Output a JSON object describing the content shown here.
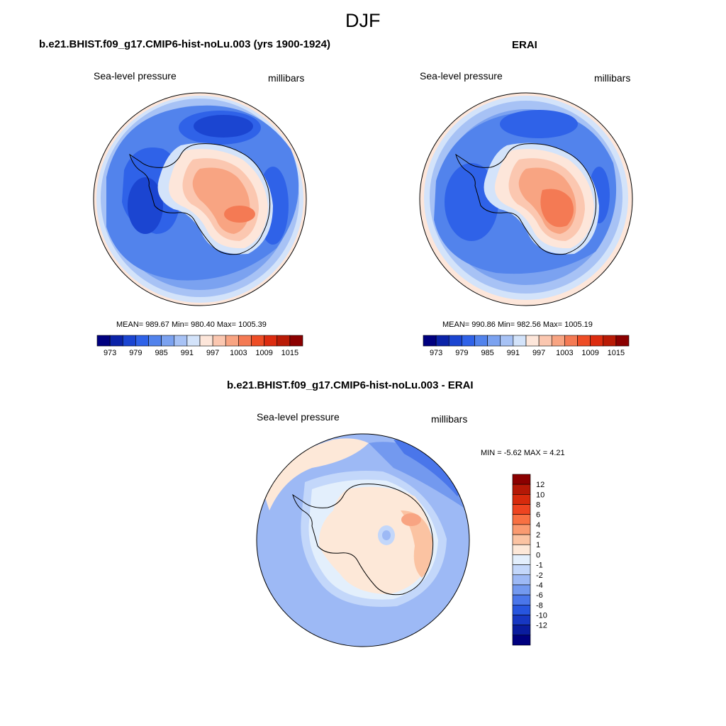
{
  "figure": {
    "title": "DJF"
  },
  "panels": [
    {
      "title": "b.e21.BHIST.f09_g17.CMIP6-hist-noLu.003 (yrs 1900-1924)",
      "left_label": "Sea-level pressure",
      "right_label": "millibars",
      "stats": "MEAN= 989.67  Min= 980.40  Max= 1005.39"
    },
    {
      "title": "ERAI",
      "left_label": "Sea-level pressure",
      "right_label": "millibars",
      "stats": "MEAN= 990.86  Min= 982.56  Max= 1005.19"
    },
    {
      "title": "b.e21.BHIST.f09_g17.CMIP6-hist-noLu.003 - ERAI",
      "left_label": "Sea-level pressure",
      "right_label": "millibars",
      "stats": "MIN =  -5.62 MAX =   4.21"
    }
  ],
  "colorbars": {
    "absolute": {
      "colors": [
        "#00007f",
        "#0b23a8",
        "#1b45d1",
        "#2f62e8",
        "#5283ec",
        "#7ba2f0",
        "#a7c2f5",
        "#d3e3fa",
        "#fde6da",
        "#fbc7b0",
        "#f8a482",
        "#f47a54",
        "#ee4d26",
        "#dc2c10",
        "#b91b06",
        "#8b0000"
      ],
      "labels": [
        "973",
        "979",
        "985",
        "991",
        "997",
        "1003",
        "1009",
        "1015"
      ]
    },
    "difference": {
      "colors_top_to_bottom": [
        "#8b0000",
        "#b41806",
        "#d72a0c",
        "#ee4420",
        "#f87042",
        "#fa9a70",
        "#fbc3a2",
        "#fde8d8",
        "#e3effc",
        "#c3d7fa",
        "#9db9f5",
        "#7399ef",
        "#4a76ea",
        "#2755de",
        "#1737c2",
        "#0a1c9e",
        "#00007f"
      ],
      "labels": [
        "12",
        "10",
        "8",
        "6",
        "4",
        "2",
        "1",
        "0",
        "-1",
        "-2",
        "-4",
        "-6",
        "-8",
        "-10",
        "-12"
      ]
    }
  },
  "map_colors": {
    "deep_blue": "#1b45d1",
    "blue": "#2f62e8",
    "mid_blue": "#5283ec",
    "light_blue": "#7ba2f0",
    "pale_blue": "#a7c2f5",
    "ice_blue": "#d3e3fa",
    "cream": "#fde6da",
    "peach": "#fbc7b0",
    "salmon": "#f8a482",
    "orange": "#f47a54",
    "diff_blue": "#7399ef",
    "diff_light": "#9db9f5",
    "diff_pale": "#c3d7fa",
    "diff_neutral": "#e3effc",
    "diff_warm": "#fde8d8",
    "diff_peach": "#fbc3a2"
  }
}
